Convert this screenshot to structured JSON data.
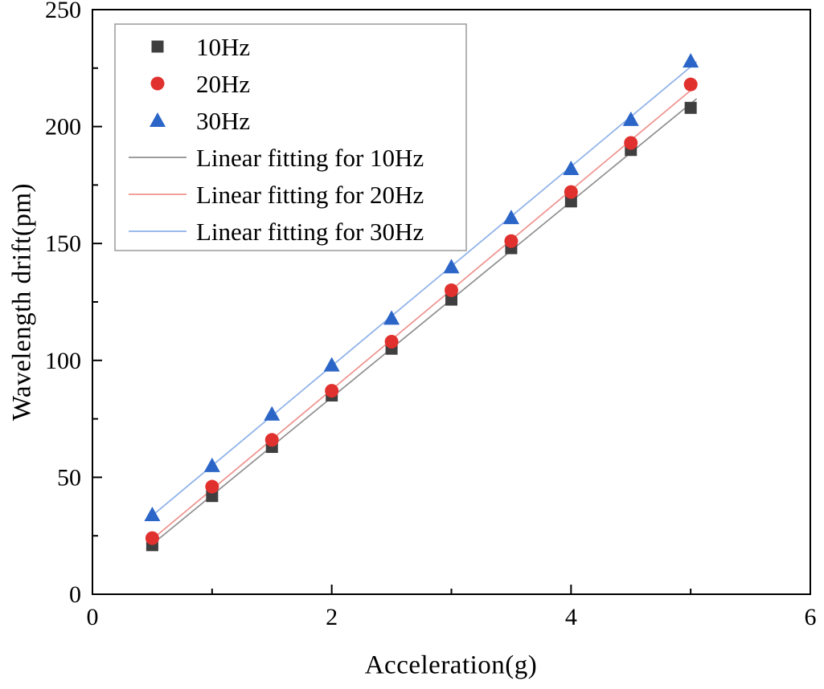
{
  "chart_data": {
    "type": "scatter",
    "title": "",
    "xlabel": "Acceleration(g)",
    "ylabel": "Wavelength drift(pm)",
    "xlim": [
      0,
      6
    ],
    "ylim": [
      0,
      250
    ],
    "x_ticks": [
      0,
      2,
      4,
      6
    ],
    "y_ticks": [
      0,
      50,
      100,
      150,
      200,
      250
    ],
    "x_minor_step": 1,
    "y_minor_step": 25,
    "grid": false,
    "legend_position": "top-left",
    "x": [
      0.5,
      1.0,
      1.5,
      2.0,
      2.5,
      3.0,
      3.5,
      4.0,
      4.5,
      5.0
    ],
    "series": [
      {
        "name": "10Hz",
        "marker": "square",
        "color": "#3f3f3f",
        "line_color": "#8f8f8f",
        "fit_label": "Linear fitting for 10Hz",
        "values": [
          21,
          42,
          63,
          85,
          105,
          126,
          148,
          168,
          190,
          208
        ]
      },
      {
        "name": "20Hz",
        "marker": "circle",
        "color": "#e0312e",
        "line_color": "#ef928f",
        "fit_label": "Linear fitting for 20Hz",
        "values": [
          24,
          46,
          66,
          87,
          108,
          130,
          151,
          172,
          193,
          218
        ]
      },
      {
        "name": "30Hz",
        "marker": "triangle",
        "color": "#2b65c7",
        "line_color": "#8cb0e8",
        "fit_label": "Linear fitting for 30Hz",
        "values": [
          34,
          55,
          77,
          98,
          118,
          140,
          161,
          182,
          203,
          228
        ]
      }
    ],
    "colors": {
      "frame": "#000000",
      "legend_border": "#9a9a9a",
      "background": "#ffffff"
    }
  }
}
